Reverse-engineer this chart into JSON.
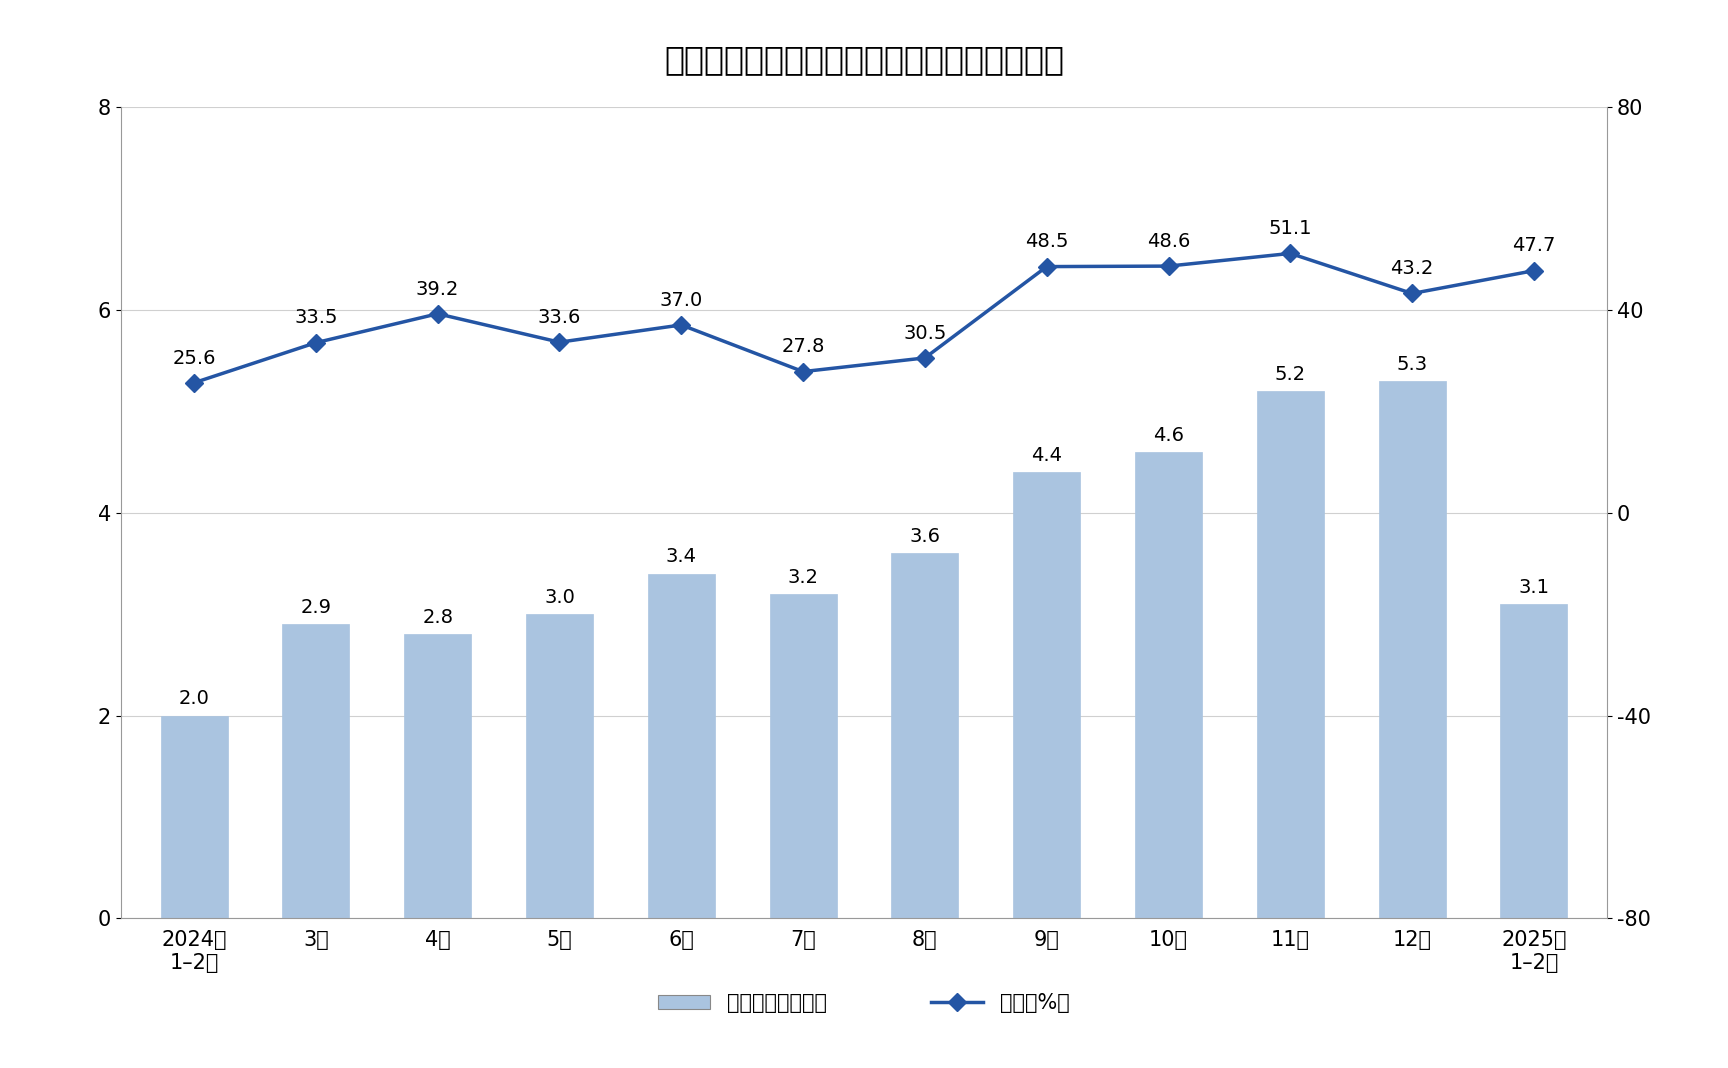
{
  "title": "规模以上工业新能源汽车同比增速及日均产量",
  "categories": [
    "2024年\n1–2月",
    "3月",
    "4月",
    "5月",
    "6月",
    "7月",
    "8月",
    "9月",
    "10月",
    "11月",
    "12月",
    "2025年\n1–2月"
  ],
  "bar_values": [
    2.0,
    2.9,
    2.8,
    3.0,
    3.4,
    3.2,
    3.6,
    4.4,
    4.6,
    5.2,
    5.3,
    3.1
  ],
  "bar_labels": [
    "2.0",
    "2.9",
    "2.8",
    "3.0",
    "3.4",
    "3.2",
    "3.6",
    "4.4",
    "4.6",
    "5.2",
    "5.3",
    "3.1"
  ],
  "line_values": [
    25.6,
    33.5,
    39.2,
    33.6,
    37.0,
    27.8,
    30.5,
    48.5,
    48.6,
    51.1,
    43.2,
    47.7
  ],
  "line_labels": [
    "25.6",
    "33.5",
    "39.2",
    "33.6",
    "37.0",
    "27.8",
    "30.5",
    "48.5",
    "48.6",
    "51.1",
    "43.2",
    "47.7"
  ],
  "bar_color": "#aac4e0",
  "bar_edge_color": "#aac4e0",
  "line_color": "#2455a4",
  "marker_color": "#2455a4",
  "left_ylim": [
    0,
    8
  ],
  "left_yticks": [
    0,
    2,
    4,
    6,
    8
  ],
  "right_ylim": [
    -80,
    80
  ],
  "right_yticks": [
    -80,
    -40,
    0,
    40,
    80
  ],
  "legend_bar_label": "日均产量（万辆）",
  "legend_line_label": "增速（%）",
  "background_color": "#ffffff",
  "title_fontsize": 24,
  "label_fontsize": 15,
  "tick_fontsize": 15,
  "annotation_fontsize": 14
}
